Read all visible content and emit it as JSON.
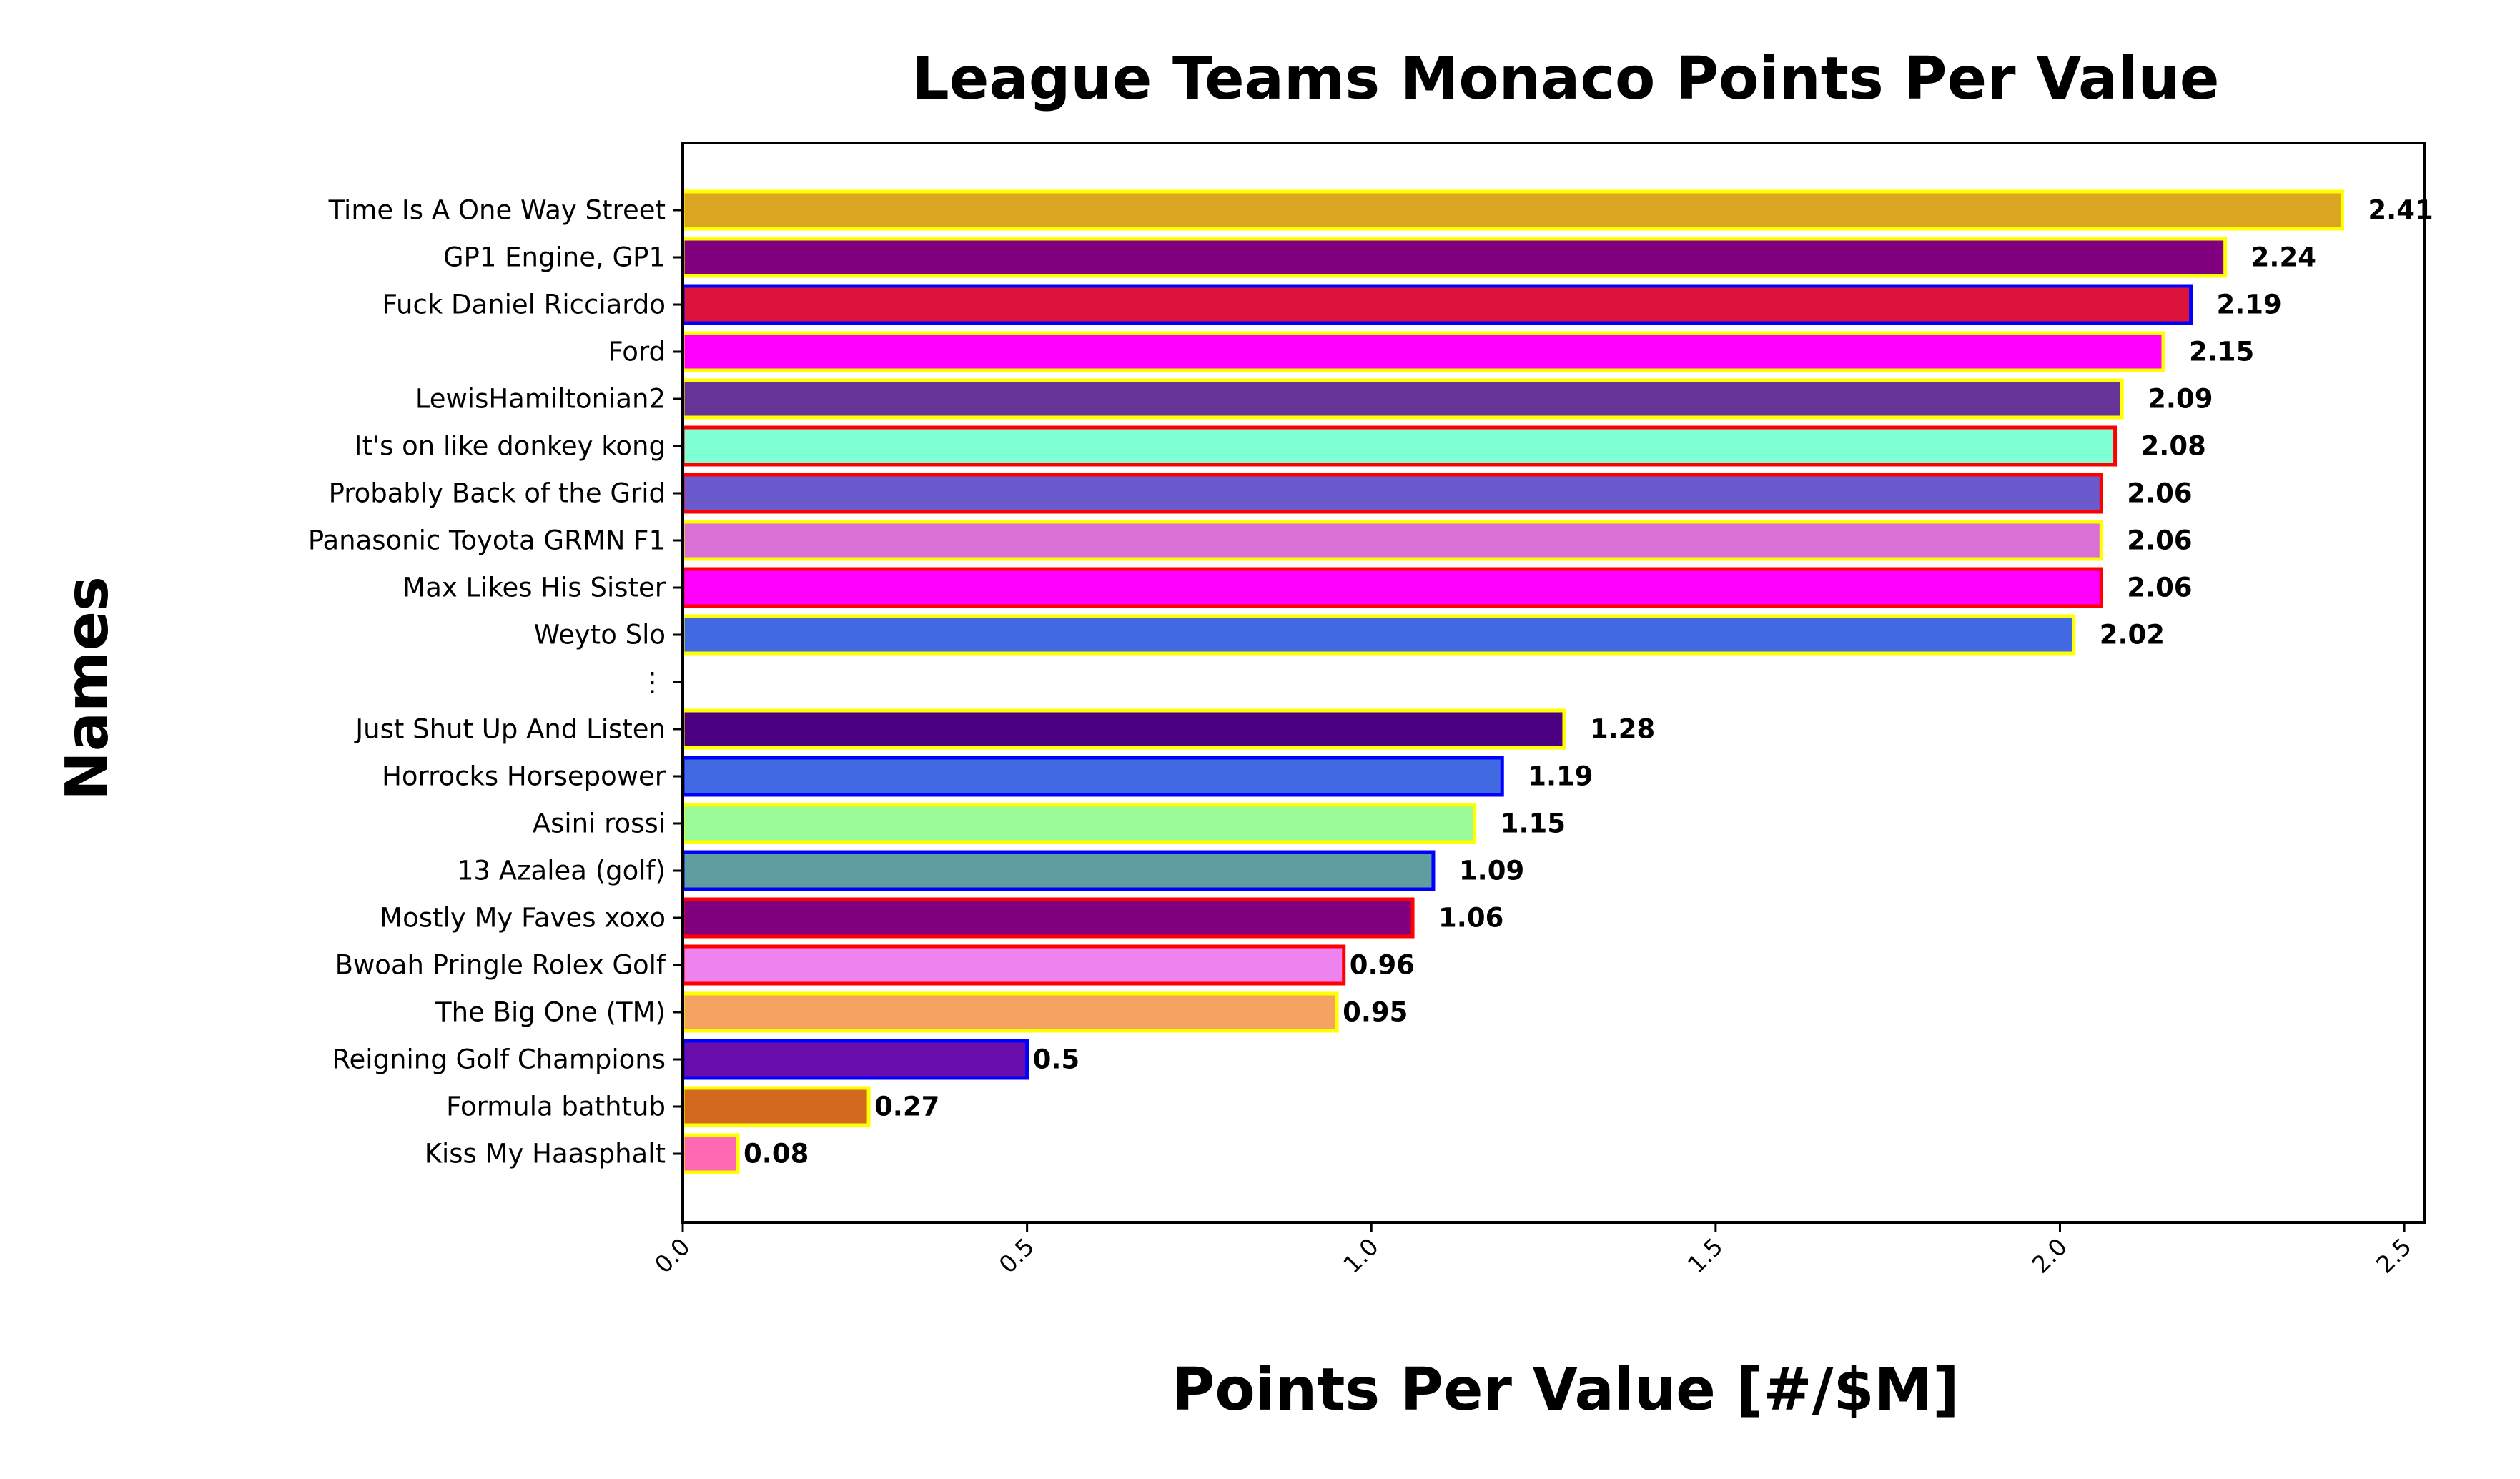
{
  "chart_data": {
    "type": "bar",
    "orientation": "horizontal",
    "title": "League Teams Monaco Points Per Value",
    "xlabel": "Points Per Value [#/$M]",
    "ylabel": "Names",
    "xlim": [
      0,
      2.53
    ],
    "xticks": [
      "0.0",
      "0.5",
      "1.0",
      "1.5",
      "2.0",
      "2.5"
    ],
    "grid": false,
    "legend": "none",
    "bars": [
      {
        "name": "Time Is A One Way Street",
        "value": 2.41,
        "label": "2.41",
        "fill": "#DAA520",
        "edge": "#FFFF00"
      },
      {
        "name": "GP1 Engine, GP1",
        "value": 2.24,
        "label": "2.24",
        "fill": "#800080",
        "edge": "#FFFF00"
      },
      {
        "name": "Fuck Daniel Ricciardo",
        "value": 2.19,
        "label": "2.19",
        "fill": "#DC143C",
        "edge": "#0000FF"
      },
      {
        "name": "Ford",
        "value": 2.15,
        "label": "2.15",
        "fill": "#FF00FF",
        "edge": "#FFFF00"
      },
      {
        "name": "LewisHamiltonian2",
        "value": 2.09,
        "label": "2.09",
        "fill": "#663399",
        "edge": "#FFFF00"
      },
      {
        "name": "It's on like donkey kong",
        "value": 2.08,
        "label": "2.08",
        "fill": "#7FFFD4",
        "edge": "#FF0000"
      },
      {
        "name": "Probably Back of the Grid",
        "value": 2.06,
        "label": "2.06",
        "fill": "#6A5ACD",
        "edge": "#FF0000"
      },
      {
        "name": "Panasonic Toyota GRMN F1",
        "value": 2.06,
        "label": "2.06",
        "fill": "#DA70D6",
        "edge": "#FFFF00"
      },
      {
        "name": "Max Likes His Sister",
        "value": 2.06,
        "label": "2.06",
        "fill": "#FF00FF",
        "edge": "#FF0000"
      },
      {
        "name": "Weyto Slo",
        "value": 2.02,
        "label": "2.02",
        "fill": "#4169E1",
        "edge": "#FFFF00"
      },
      {
        "name": "⋮",
        "value": null,
        "label": "",
        "fill": "none",
        "edge": "none"
      },
      {
        "name": "Just Shut Up And Listen",
        "value": 1.28,
        "label": "1.28",
        "fill": "#4B0082",
        "edge": "#FFFF00"
      },
      {
        "name": "Horrocks Horsepower",
        "value": 1.19,
        "label": "1.19",
        "fill": "#4169E1",
        "edge": "#0000FF"
      },
      {
        "name": "Asini rossi",
        "value": 1.15,
        "label": "1.15",
        "fill": "#98FB98",
        "edge": "#FFFF00"
      },
      {
        "name": "13 Azalea (golf)",
        "value": 1.09,
        "label": "1.09",
        "fill": "#5F9EA0",
        "edge": "#0000FF"
      },
      {
        "name": "Mostly My Faves xoxo",
        "value": 1.06,
        "label": "1.06",
        "fill": "#800080",
        "edge": "#FF0000"
      },
      {
        "name": "Bwoah Pringle Rolex Golf",
        "value": 0.96,
        "label": "0.96",
        "fill": "#EE82EE",
        "edge": "#FF0000"
      },
      {
        "name": "The Big One (TM)",
        "value": 0.95,
        "label": "0.95",
        "fill": "#F4A460",
        "edge": "#FFFF00"
      },
      {
        "name": "Reigning Golf Champions",
        "value": 0.5,
        "label": "0.5",
        "fill": "#6A0DAD",
        "edge": "#0000FF"
      },
      {
        "name": "Formula bathtub",
        "value": 0.27,
        "label": "0.27",
        "fill": "#D2691E",
        "edge": "#FFFF00"
      },
      {
        "name": "Kiss My Haasphalt",
        "value": 0.08,
        "label": "0.08",
        "fill": "#FF69B4",
        "edge": "#FFFF00"
      }
    ]
  }
}
